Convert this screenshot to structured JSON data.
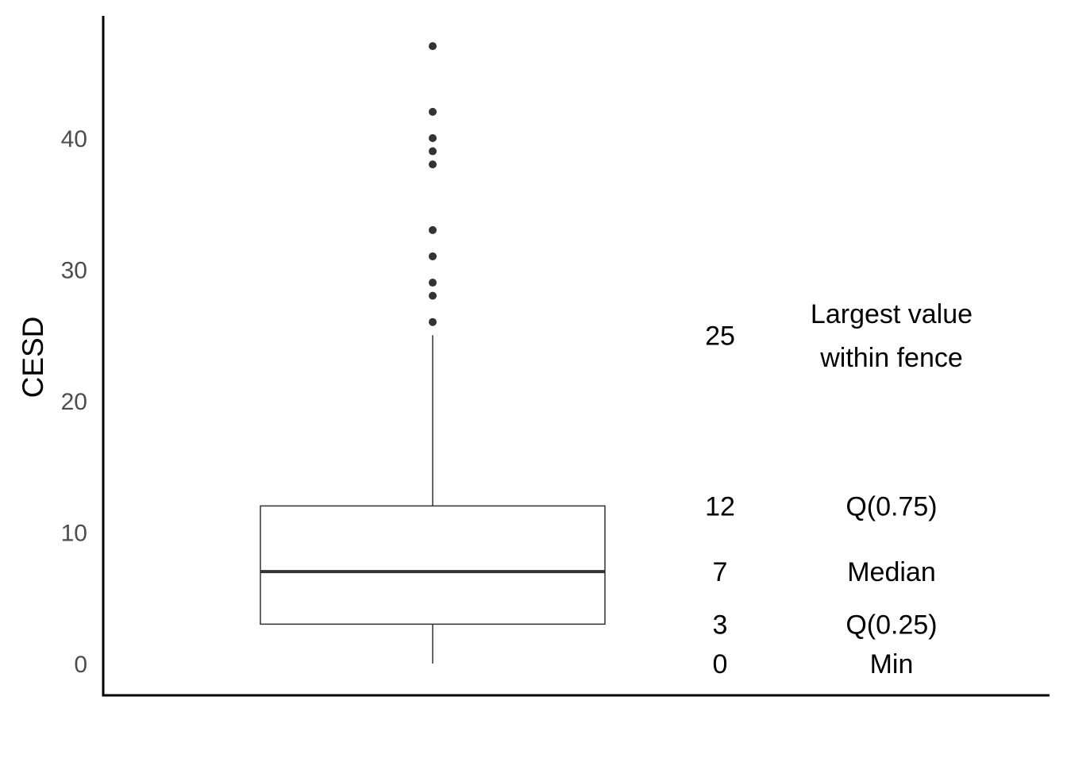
{
  "chart_data": {
    "type": "box",
    "ylabel": "CESD",
    "xlabel": "",
    "ylim": [
      -2,
      52
    ],
    "yticks": [
      0,
      10,
      20,
      30,
      40
    ],
    "grid": false,
    "box": {
      "min": 0,
      "q1": 3,
      "median": 7,
      "q3": 12,
      "upper_whisker": 25,
      "outliers": [
        26,
        28,
        29,
        31,
        33,
        38,
        39,
        40,
        42,
        47
      ]
    },
    "annotations": [
      {
        "value": "25",
        "label_lines": [
          "Largest value",
          "within fence"
        ],
        "y": 25
      },
      {
        "value": "12",
        "label_lines": [
          "Q(0.75)"
        ],
        "y": 12
      },
      {
        "value": "7",
        "label_lines": [
          "Median"
        ],
        "y": 7
      },
      {
        "value": "3",
        "label_lines": [
          "Q(0.25)"
        ],
        "y": 3
      },
      {
        "value": "0",
        "label_lines": [
          "Min"
        ],
        "y": 0
      }
    ],
    "colors": {
      "box_line": "#333333",
      "point": "#333333",
      "axis": "#000000"
    }
  }
}
